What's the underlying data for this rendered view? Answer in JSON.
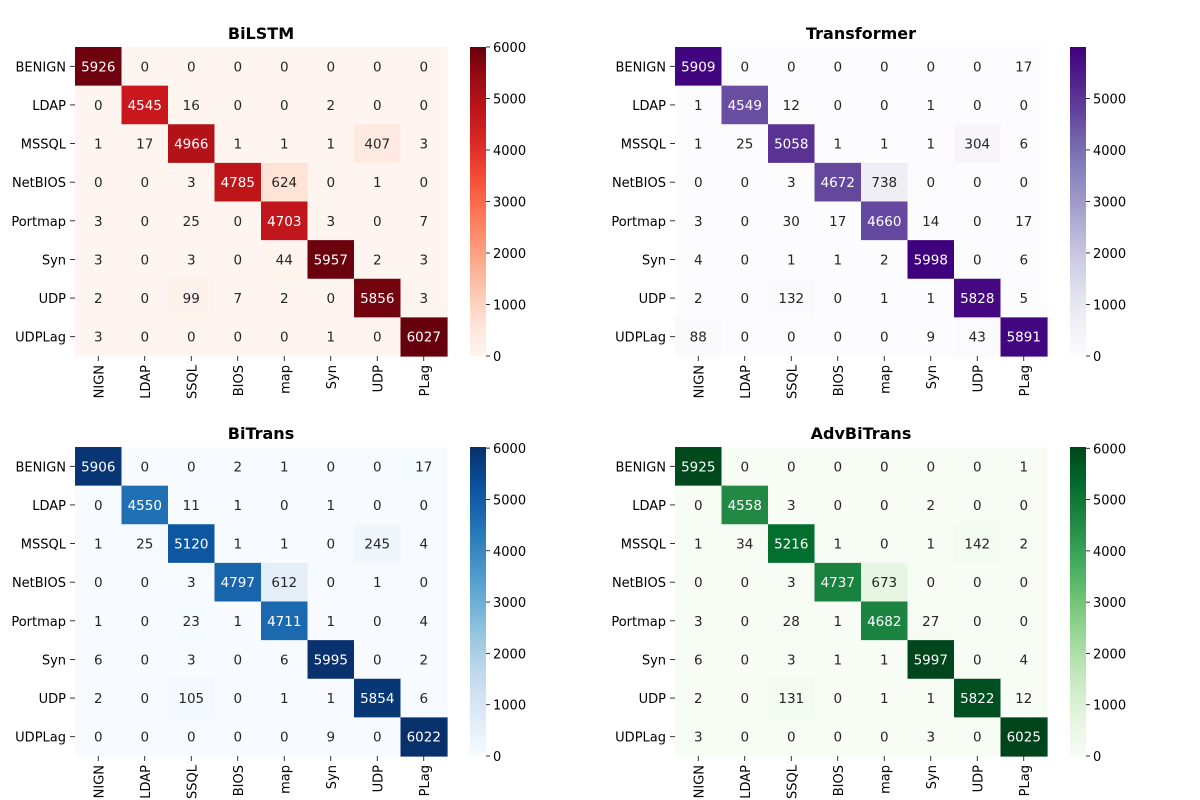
{
  "chart_data": [
    {
      "type": "heatmap",
      "title": "BiLSTM",
      "colormap": "Reds",
      "rows": [
        "BENIGN",
        "LDAP",
        "MSSQL",
        "NetBIOS",
        "Portmap",
        "Syn",
        "UDP",
        "UDPLag"
      ],
      "cols": [
        "BENIGN",
        "LDAP",
        "MSSQL",
        "NetBIOS",
        "Portmap",
        "Syn",
        "UDP",
        "UDPLag"
      ],
      "col_tick_labels_visible": [
        "NIGN",
        "LDAP",
        "SSQL",
        "BIOS",
        "map",
        "Syn",
        "UDP",
        "PLag"
      ],
      "values": [
        [
          5926,
          0,
          0,
          0,
          0,
          0,
          0,
          0
        ],
        [
          0,
          4545,
          16,
          0,
          0,
          2,
          0,
          0
        ],
        [
          1,
          17,
          4966,
          1,
          1,
          1,
          407,
          3
        ],
        [
          0,
          0,
          3,
          4785,
          624,
          0,
          1,
          0
        ],
        [
          3,
          0,
          25,
          0,
          4703,
          3,
          0,
          7
        ],
        [
          3,
          0,
          3,
          0,
          44,
          5957,
          2,
          3
        ],
        [
          2,
          0,
          99,
          7,
          2,
          0,
          5856,
          3
        ],
        [
          3,
          0,
          0,
          0,
          0,
          1,
          0,
          6027
        ]
      ],
      "colorbar": {
        "min": 0,
        "max": 6000,
        "ticks": [
          0,
          1000,
          2000,
          3000,
          4000,
          5000,
          6000
        ]
      }
    },
    {
      "type": "heatmap",
      "title": "Transformer",
      "colormap": "Purples",
      "rows": [
        "BENIGN",
        "LDAP",
        "MSSQL",
        "NetBIOS",
        "Portmap",
        "Syn",
        "UDP",
        "UDPLag"
      ],
      "cols": [
        "BENIGN",
        "LDAP",
        "MSSQL",
        "NetBIOS",
        "Portmap",
        "Syn",
        "UDP",
        "UDPLag"
      ],
      "col_tick_labels_visible": [
        "NIGN",
        "LDAP",
        "SSQL",
        "BIOS",
        "map",
        "Syn",
        "UDP",
        "PLag"
      ],
      "values": [
        [
          5909,
          0,
          0,
          0,
          0,
          0,
          0,
          17
        ],
        [
          1,
          4549,
          12,
          0,
          0,
          1,
          0,
          0
        ],
        [
          1,
          25,
          5058,
          1,
          1,
          1,
          304,
          6
        ],
        [
          0,
          0,
          3,
          4672,
          738,
          0,
          0,
          0
        ],
        [
          3,
          0,
          30,
          17,
          4660,
          14,
          0,
          17
        ],
        [
          4,
          0,
          1,
          1,
          2,
          5998,
          0,
          6
        ],
        [
          2,
          0,
          132,
          0,
          1,
          1,
          5828,
          5
        ],
        [
          88,
          0,
          0,
          0,
          0,
          9,
          43,
          5891
        ]
      ],
      "colorbar": {
        "min": 0,
        "max": 5998,
        "ticks": [
          0,
          1000,
          2000,
          3000,
          4000,
          5000
        ]
      }
    },
    {
      "type": "heatmap",
      "title": "BiTrans",
      "colormap": "Blues",
      "rows": [
        "BENIGN",
        "LDAP",
        "MSSQL",
        "NetBIOS",
        "Portmap",
        "Syn",
        "UDP",
        "UDPLag"
      ],
      "cols": [
        "BENIGN",
        "LDAP",
        "MSSQL",
        "NetBIOS",
        "Portmap",
        "Syn",
        "UDP",
        "UDPLag"
      ],
      "col_tick_labels_visible": [
        "NIGN",
        "LDAP",
        "SSQL",
        "BIOS",
        "map",
        "Syn",
        "UDP",
        "PLag"
      ],
      "values": [
        [
          5906,
          0,
          0,
          2,
          1,
          0,
          0,
          17
        ],
        [
          0,
          4550,
          11,
          1,
          0,
          1,
          0,
          0
        ],
        [
          1,
          25,
          5120,
          1,
          1,
          0,
          245,
          4
        ],
        [
          0,
          0,
          3,
          4797,
          612,
          0,
          1,
          0
        ],
        [
          1,
          0,
          23,
          1,
          4711,
          1,
          0,
          4
        ],
        [
          6,
          0,
          3,
          0,
          6,
          5995,
          0,
          2
        ],
        [
          2,
          0,
          105,
          0,
          1,
          1,
          5854,
          6
        ],
        [
          0,
          0,
          0,
          0,
          0,
          9,
          0,
          6022
        ]
      ],
      "colorbar": {
        "min": 0,
        "max": 6022,
        "ticks": [
          0,
          1000,
          2000,
          3000,
          4000,
          5000,
          6000
        ]
      }
    },
    {
      "type": "heatmap",
      "title": "AdvBiTrans",
      "colormap": "Greens",
      "rows": [
        "BENIGN",
        "LDAP",
        "MSSQL",
        "NetBIOS",
        "Portmap",
        "Syn",
        "UDP",
        "UDPLag"
      ],
      "cols": [
        "BENIGN",
        "LDAP",
        "MSSQL",
        "NetBIOS",
        "Portmap",
        "Syn",
        "UDP",
        "UDPLag"
      ],
      "col_tick_labels_visible": [
        "NIGN",
        "LDAP",
        "SSQL",
        "BIOS",
        "map",
        "Syn",
        "UDP",
        "PLag"
      ],
      "values": [
        [
          5925,
          0,
          0,
          0,
          0,
          0,
          0,
          1
        ],
        [
          0,
          4558,
          3,
          0,
          0,
          2,
          0,
          0
        ],
        [
          1,
          34,
          5216,
          1,
          0,
          1,
          142,
          2
        ],
        [
          0,
          0,
          3,
          4737,
          673,
          0,
          0,
          0
        ],
        [
          3,
          0,
          28,
          1,
          4682,
          27,
          0,
          0
        ],
        [
          6,
          0,
          3,
          1,
          1,
          5997,
          0,
          4
        ],
        [
          2,
          0,
          131,
          0,
          1,
          1,
          5822,
          12
        ],
        [
          3,
          0,
          0,
          0,
          0,
          3,
          0,
          6025
        ]
      ],
      "colorbar": {
        "min": 0,
        "max": 6025,
        "ticks": [
          0,
          1000,
          2000,
          3000,
          4000,
          5000,
          6000
        ]
      }
    }
  ]
}
